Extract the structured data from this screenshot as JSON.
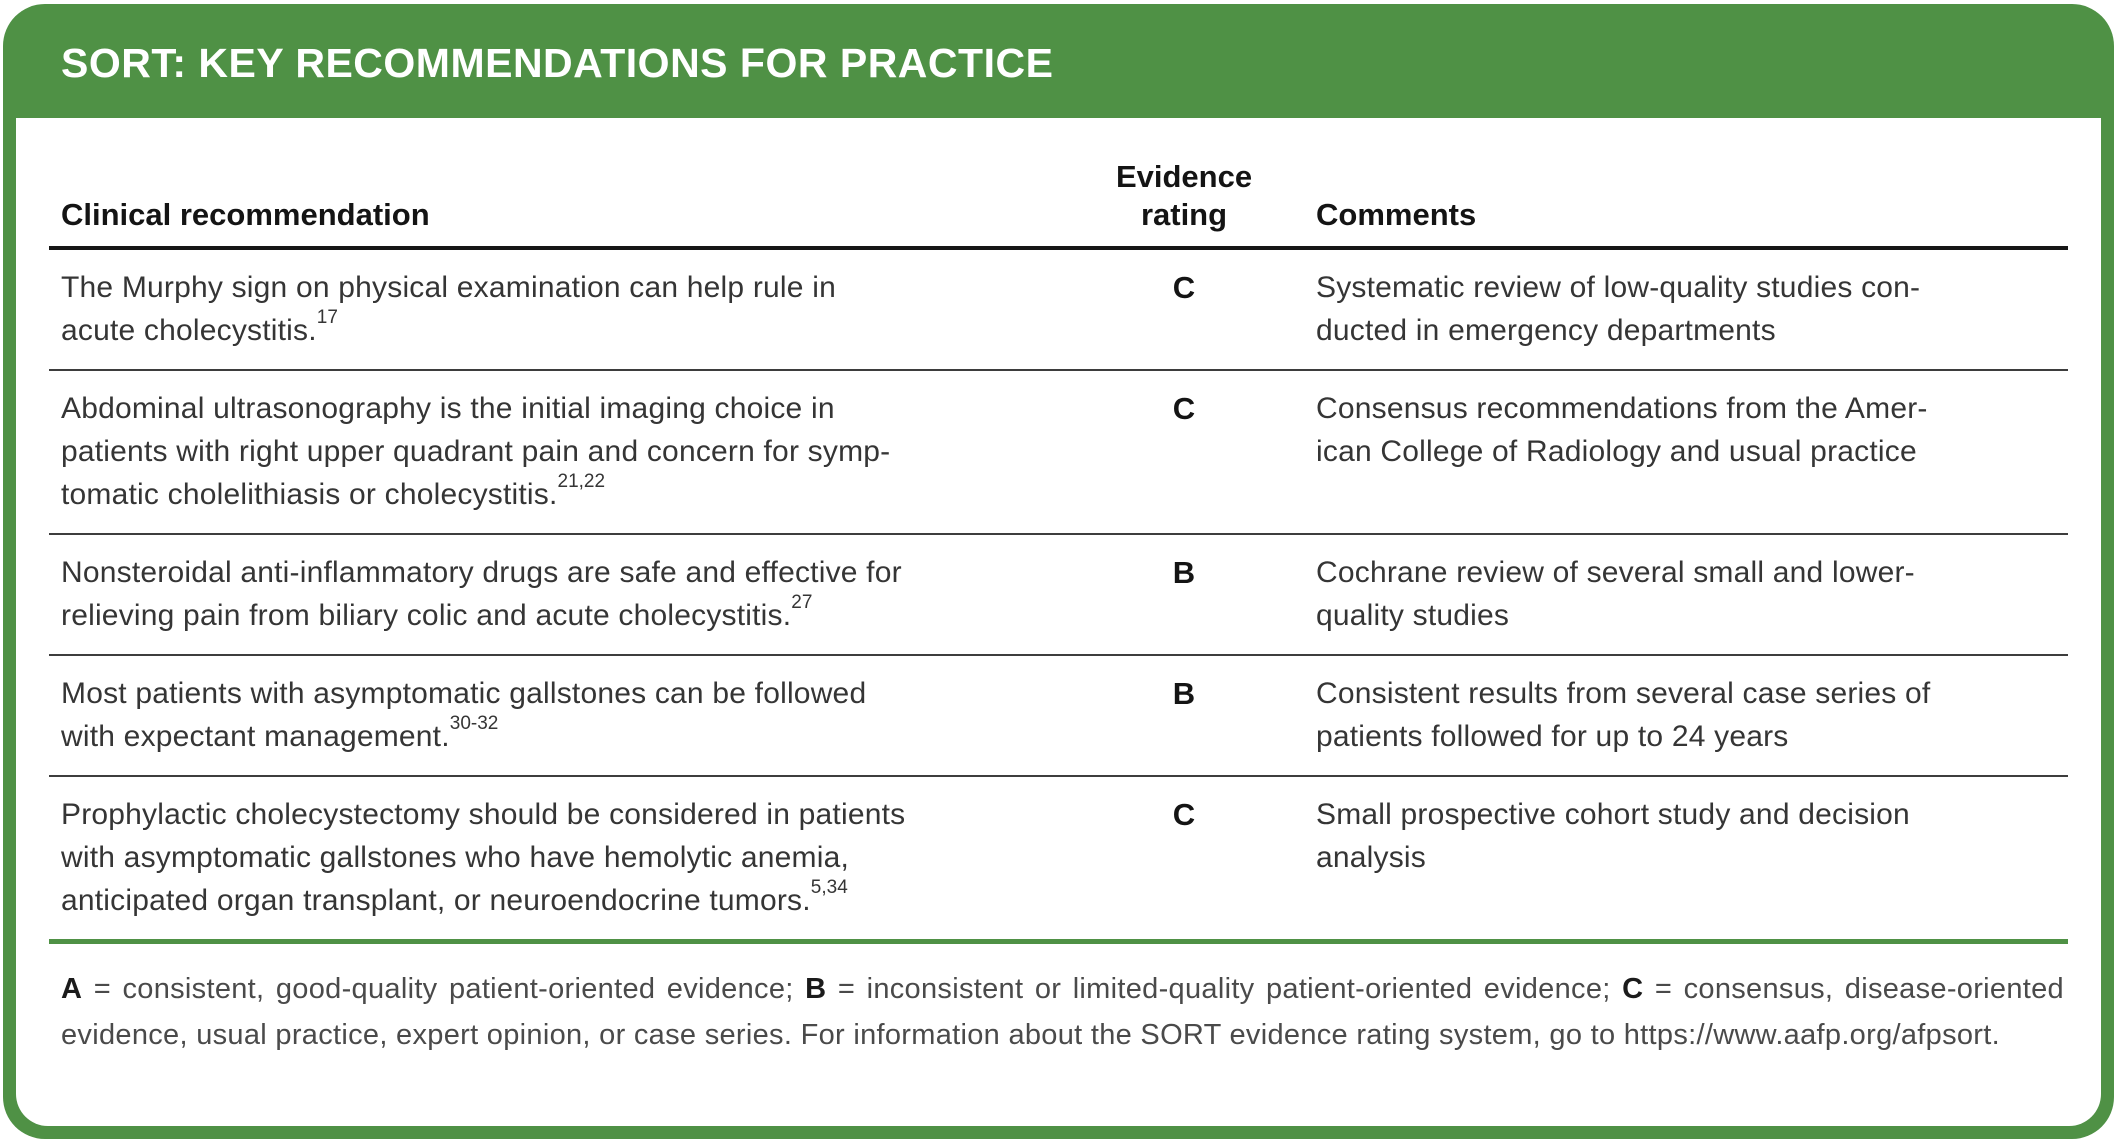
{
  "title": "SORT: KEY RECOMMENDATIONS FOR PRACTICE",
  "columns": {
    "clinical": "Clinical recommendation",
    "evidence": "Evidence\nrating",
    "comments": "Comments"
  },
  "rows": [
    {
      "recommendation": "The Murphy sign on physical examination can help rule in\nacute cholecystitis.",
      "ref": "17",
      "rating": "C",
      "comment": "Systematic review of low-quality studies con-\nducted in emergency departments"
    },
    {
      "recommendation": "Abdominal ultrasonography is the initial imaging choice in\npatients with right upper quadrant pain and concern for symp-\ntomatic cholelithiasis or cholecystitis.",
      "ref": "21,22",
      "rating": "C",
      "comment": "Consensus recommendations from the Amer-\nican College of Radiology and usual practice"
    },
    {
      "recommendation": "Nonsteroidal anti-inflammatory drugs are safe and effective for\nrelieving pain from biliary colic and acute cholecystitis.",
      "ref": "27",
      "rating": "B",
      "comment": "Cochrane review of several small and lower-\nquality studies"
    },
    {
      "recommendation": "Most patients with asymptomatic gallstones can be followed\nwith expectant management.",
      "ref": "30-32",
      "rating": "B",
      "comment": "Consistent results from several case series of\npatients followed for up to 24 years"
    },
    {
      "recommendation": "Prophylactic cholecystectomy should be considered in patients\nwith asymptomatic gallstones who have hemolytic anemia,\nanticipated organ transplant, or neuroendocrine tumors.",
      "ref": "5,34",
      "rating": "C",
      "comment": "Small prospective cohort study and decision\nanalysis"
    }
  ],
  "footnote": {
    "a_label": "A",
    "a_text": " = consistent, good-quality patient-oriented evidence; ",
    "b_label": "B",
    "b_text": " = inconsistent or limited-quality patient-oriented evidence; ",
    "c_label": "C",
    "c_text": " = consensus, disease-oriented evidence, usual practice, expert opinion, or case series. For information about the SORT evidence rating system, go to https://www.​aafp.org/afpsort."
  },
  "colors": {
    "accent_green": "#4f9145",
    "rule_black": "#161616",
    "text": "#353535"
  }
}
